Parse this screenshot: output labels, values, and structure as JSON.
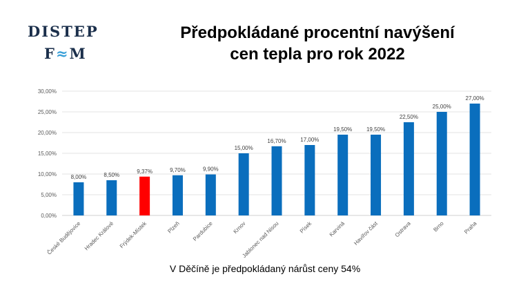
{
  "logo": {
    "line1": "DISTEP",
    "line2_f": "F",
    "line2_wave": "≈",
    "line2_m": "M"
  },
  "title": [
    "Předpokládané  procentní navýšení",
    "cen tepla pro rok 2022"
  ],
  "note": "V Děčíně je předpokládaný nárůst ceny 54%",
  "chart_data": {
    "type": "bar",
    "categories": [
      "České Budějovice",
      "Hradec Králové",
      "Frýdek-Místek",
      "Plzeň",
      "Pardubice",
      "Krnov",
      "Jablonec nad Nisou",
      "Písek",
      "Karviná",
      "Havířov část",
      "Ostrava",
      "Brno",
      "Praha"
    ],
    "values": [
      8.0,
      8.5,
      9.37,
      9.7,
      9.9,
      15.0,
      16.7,
      17.0,
      19.5,
      19.5,
      22.5,
      25.0,
      27.0
    ],
    "data_labels": [
      "8,00%",
      "8,50%",
      "9,37%",
      "9,70%",
      "9,90%",
      "15,00%",
      "16,70%",
      "17,00%",
      "19,50%",
      "19,50%",
      "22,50%",
      "25,00%",
      "27,00%"
    ],
    "yticks": [
      "0,00%",
      "5,00%",
      "10,00%",
      "15,00%",
      "20,00%",
      "25,00%",
      "30,00%"
    ],
    "ylim": [
      0,
      30
    ],
    "grid": true,
    "colors": {
      "default": "#0a6ebd",
      "highlight": "#ff0000"
    },
    "highlight_index": 2
  }
}
